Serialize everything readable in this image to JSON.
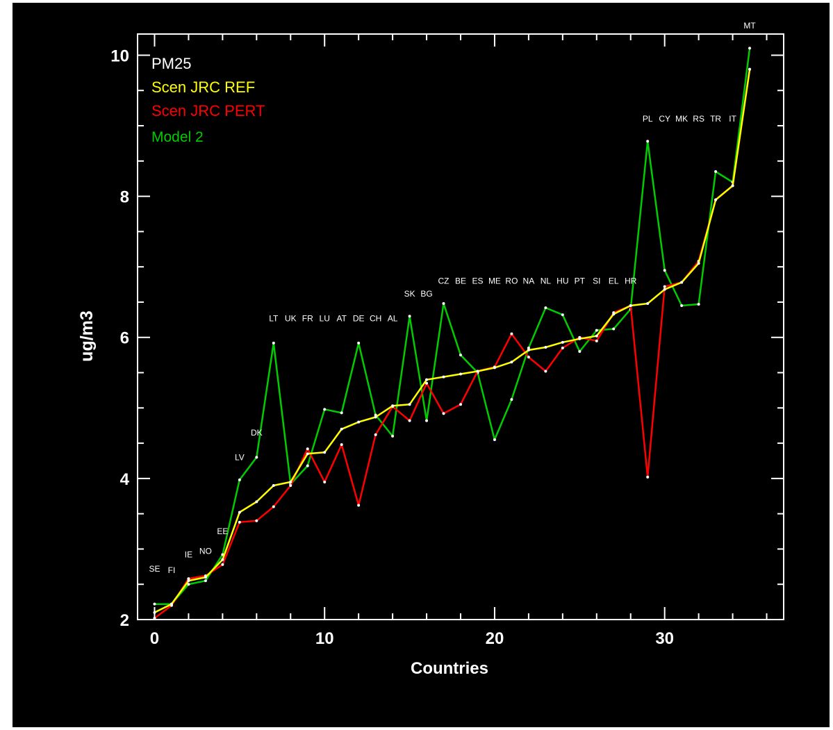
{
  "chart_data": {
    "type": "line",
    "title": "",
    "xlabel": "Countries",
    "ylabel": "ug/m3",
    "xlim": [
      -1,
      37
    ],
    "ylim": [
      2,
      10.3
    ],
    "x_ticks": [
      0,
      10,
      20,
      30
    ],
    "x_tick_labels": [
      "0",
      "10",
      "20",
      "30"
    ],
    "y_ticks": [
      2,
      4,
      6,
      8,
      10
    ],
    "y_tick_labels": [
      "2",
      "4",
      "6",
      "8",
      "10"
    ],
    "grid": false,
    "background": "#000000",
    "axis_color": "#ffffff",
    "legend": {
      "placement": "top-left",
      "entries": [
        {
          "label": "PM25",
          "color": "#ffffff"
        },
        {
          "label": "Scen JRC REF",
          "color": "#ffff00"
        },
        {
          "label": "Scen JRC PERT",
          "color": "#ff0000"
        },
        {
          "label": "Model 2",
          "color": "#00cc00"
        }
      ]
    },
    "country_labels": [
      {
        "x": 0,
        "text": "SE",
        "y": 2.68
      },
      {
        "x": 1,
        "text": "FI",
        "y": 2.66
      },
      {
        "x": 2,
        "text": "IE",
        "y": 2.88
      },
      {
        "x": 3,
        "text": "NO",
        "y": 2.93
      },
      {
        "x": 4,
        "text": "EE",
        "y": 3.21
      },
      {
        "x": 5,
        "text": "LV",
        "y": 4.26
      },
      {
        "x": 6,
        "text": "DK",
        "y": 4.61
      },
      {
        "x": 7,
        "text": "LT",
        "y": 6.23
      },
      {
        "x": 8,
        "text": "UK",
        "y": 6.23
      },
      {
        "x": 9,
        "text": "FR",
        "y": 6.23
      },
      {
        "x": 10,
        "text": "LU",
        "y": 6.23
      },
      {
        "x": 11,
        "text": "AT",
        "y": 6.23
      },
      {
        "x": 12,
        "text": "DE",
        "y": 6.23
      },
      {
        "x": 13,
        "text": "CH",
        "y": 6.23
      },
      {
        "x": 14,
        "text": "AL",
        "y": 6.23
      },
      {
        "x": 15,
        "text": "SK",
        "y": 6.58
      },
      {
        "x": 16,
        "text": "BG",
        "y": 6.58
      },
      {
        "x": 17,
        "text": "CZ",
        "y": 6.76
      },
      {
        "x": 18,
        "text": "BE",
        "y": 6.76
      },
      {
        "x": 19,
        "text": "ES",
        "y": 6.76
      },
      {
        "x": 20,
        "text": "ME",
        "y": 6.76
      },
      {
        "x": 21,
        "text": "RO",
        "y": 6.76
      },
      {
        "x": 22,
        "text": "NA",
        "y": 6.76
      },
      {
        "x": 23,
        "text": "NL",
        "y": 6.76
      },
      {
        "x": 24,
        "text": "HU",
        "y": 6.76
      },
      {
        "x": 25,
        "text": "PT",
        "y": 6.76
      },
      {
        "x": 26,
        "text": "SI",
        "y": 6.76
      },
      {
        "x": 27,
        "text": "EL",
        "y": 6.76
      },
      {
        "x": 28,
        "text": "HR",
        "y": 6.76
      },
      {
        "x": 29,
        "text": "PL",
        "y": 9.06
      },
      {
        "x": 30,
        "text": "CY",
        "y": 9.06
      },
      {
        "x": 31,
        "text": "MK",
        "y": 9.06
      },
      {
        "x": 32,
        "text": "RS",
        "y": 9.06
      },
      {
        "x": 33,
        "text": "TR",
        "y": 9.06
      },
      {
        "x": 34,
        "text": "IT",
        "y": 9.06
      },
      {
        "x": 35,
        "text": "MT",
        "y": 10.38
      }
    ],
    "x": [
      0,
      1,
      2,
      3,
      4,
      5,
      6,
      7,
      8,
      9,
      10,
      11,
      12,
      13,
      14,
      15,
      16,
      17,
      18,
      19,
      20,
      21,
      22,
      23,
      24,
      25,
      26,
      27,
      28,
      29,
      30,
      31,
      32,
      33,
      34,
      35
    ],
    "series": [
      {
        "name": "Scen JRC REF",
        "color": "#ffff00",
        "values": [
          2.1,
          2.22,
          2.55,
          2.6,
          2.85,
          3.52,
          3.67,
          3.9,
          3.95,
          4.35,
          4.37,
          4.7,
          4.8,
          4.87,
          5.03,
          5.05,
          5.4,
          5.44,
          5.48,
          5.52,
          5.57,
          5.65,
          5.82,
          5.86,
          5.93,
          5.98,
          6.02,
          6.33,
          6.45,
          6.48,
          6.68,
          6.78,
          7.05,
          7.95,
          8.15,
          9.8
        ]
      },
      {
        "name": "Scen JRC PERT",
        "color": "#ff0000",
        "values": [
          2.02,
          2.2,
          2.58,
          2.62,
          2.78,
          3.38,
          3.4,
          3.6,
          3.9,
          4.42,
          3.95,
          4.48,
          3.62,
          4.62,
          5.02,
          4.82,
          5.35,
          4.92,
          5.05,
          5.52,
          5.58,
          6.05,
          5.72,
          5.52,
          5.85,
          6.0,
          5.95,
          6.35,
          6.45,
          4.02,
          6.72,
          6.78,
          7.08,
          7.95,
          8.15,
          9.8
        ]
      },
      {
        "name": "Model 2",
        "color": "#00cc00",
        "values": [
          2.22,
          2.22,
          2.5,
          2.55,
          2.92,
          3.98,
          4.3,
          5.92,
          3.92,
          4.18,
          4.98,
          4.93,
          5.92,
          4.9,
          4.6,
          6.3,
          4.82,
          6.48,
          5.75,
          5.5,
          4.55,
          5.12,
          5.85,
          6.42,
          6.32,
          5.8,
          6.1,
          6.12,
          6.4,
          8.78,
          6.95,
          6.45,
          6.47,
          8.35,
          8.2,
          10.1
        ]
      }
    ]
  }
}
